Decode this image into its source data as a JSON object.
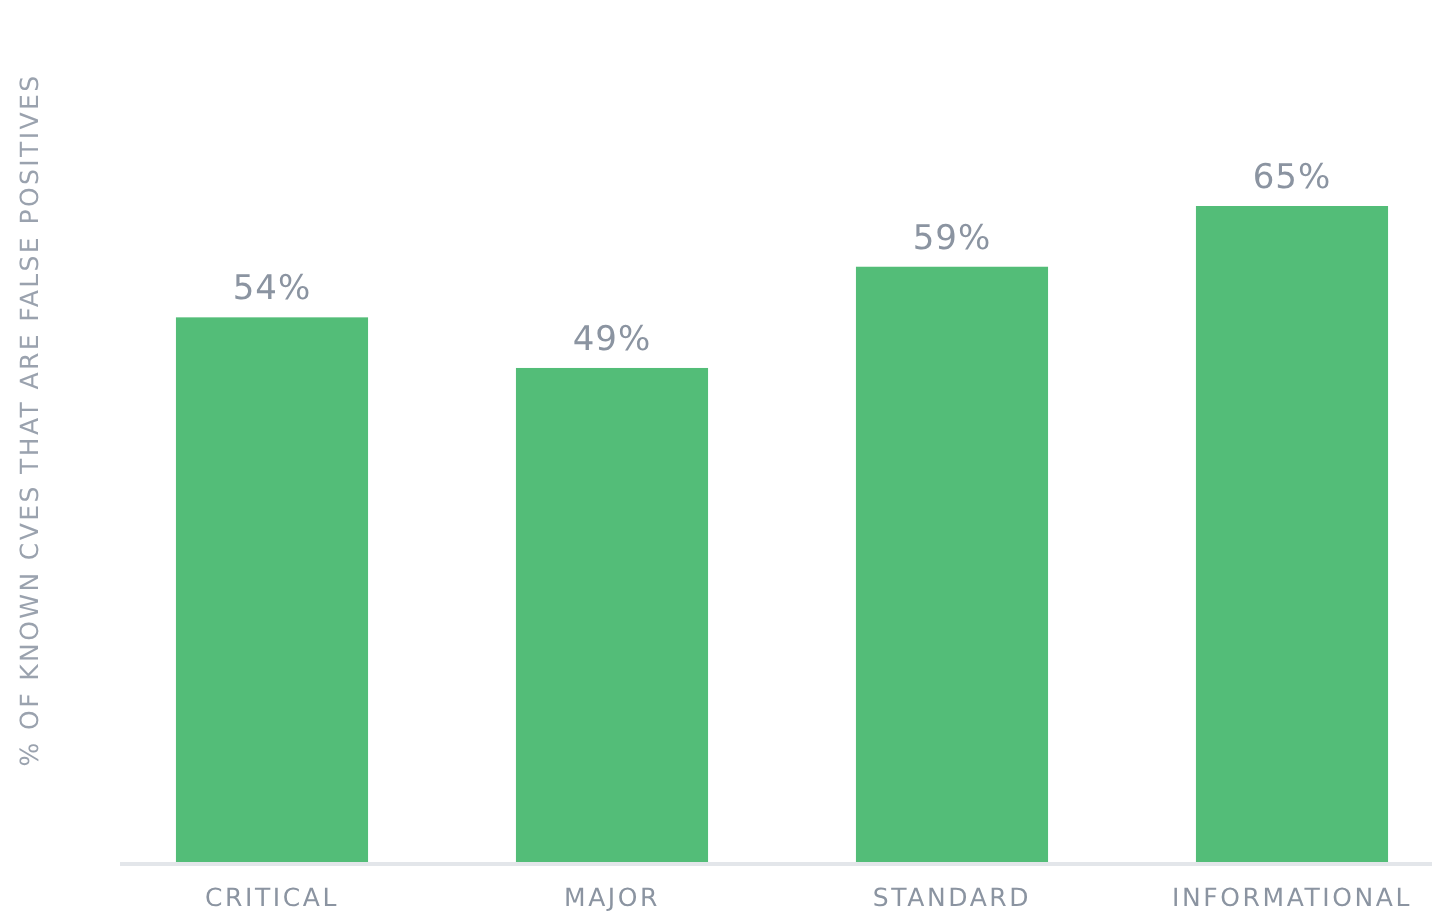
{
  "chart_data": {
    "type": "bar",
    "ylabel": "% OF KNOWN CVES THAT ARE FALSE POSITIVES",
    "categories": [
      "CRITICAL",
      "MAJOR",
      "STANDARD",
      "INFORMATIONAL"
    ],
    "values": [
      54,
      49,
      59,
      65
    ],
    "value_labels": [
      "54%",
      "49%",
      "59%",
      "65%"
    ],
    "color": "#53bd78",
    "tick_labels": "x"
  }
}
